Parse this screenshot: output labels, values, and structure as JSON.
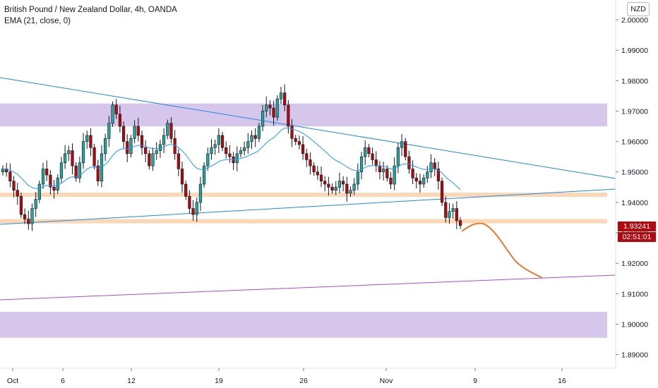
{
  "header": {
    "symbol_title": "British Pound / New Zealand Dollar, 4h, OANDA",
    "indicator": "EMA (21, close, 0)",
    "currency": "NZD"
  },
  "price_label": {
    "price": "1.93241",
    "countdown": "02:51:01",
    "color": "#b2090f"
  },
  "colors": {
    "up": "#26a69a",
    "down": "#b2090f",
    "candle_outline": "#131722",
    "ema": "#2196f3",
    "trendline": "#1e88e5",
    "support_zone": "#fcd7b5",
    "supply_zone": "#d6c6ec",
    "projection": "#ef6c1f",
    "lower_trend": "#a64dd6"
  },
  "chart_data": {
    "type": "candlestick",
    "y_axis": {
      "range": [
        1.8855,
        2.0065
      ],
      "ticks": [
        "1.89000",
        "1.90000",
        "1.91000",
        "1.92000",
        "1.93000",
        "1.94000",
        "1.95000",
        "1.96000",
        "1.97000",
        "1.98000",
        "1.99000",
        "2.00000"
      ]
    },
    "x_axis": {
      "ticks": [
        {
          "label": "Oct",
          "date": "Oct 1"
        },
        {
          "label": "6",
          "date": "Oct 6"
        },
        {
          "label": "12",
          "date": "Oct 12"
        },
        {
          "label": "19",
          "date": "Oct 19"
        },
        {
          "label": "26",
          "date": "Oct 26"
        },
        {
          "label": "Nov",
          "date": "Nov 1"
        },
        {
          "label": "9",
          "date": "Nov 9"
        },
        {
          "label": "16",
          "date": "Nov 16"
        }
      ]
    },
    "zones": [
      {
        "kind": "supply",
        "from": 1.965,
        "to": 1.9725
      },
      {
        "kind": "support",
        "from": 1.9422,
        "to": 1.9432
      },
      {
        "kind": "support",
        "from": 1.9335,
        "to": 1.9345
      },
      {
        "kind": "supply",
        "from": 1.8955,
        "to": 1.904
      }
    ],
    "close_series": [
      1.951,
      1.95,
      1.947,
      1.944,
      1.942,
      1.936,
      1.9345,
      1.933,
      1.938,
      1.941,
      1.946,
      1.951,
      1.949,
      1.945,
      1.944,
      1.948,
      1.953,
      1.956,
      1.957,
      1.952,
      1.948,
      1.953,
      1.96,
      1.962,
      1.958,
      1.952,
      1.947,
      1.956,
      1.961,
      1.966,
      1.972,
      1.969,
      1.965,
      1.96,
      1.956,
      1.961,
      1.965,
      1.962,
      1.958,
      1.956,
      1.952,
      1.956,
      1.957,
      1.959,
      1.962,
      1.966,
      1.961,
      1.956,
      1.951,
      1.946,
      1.942,
      1.938,
      1.936,
      1.94,
      1.946,
      1.952,
      1.956,
      1.958,
      1.959,
      1.962,
      1.958,
      1.956,
      1.955,
      1.953,
      1.956,
      1.957,
      1.958,
      1.96,
      1.962,
      1.961,
      1.965,
      1.97,
      1.972,
      1.971,
      1.968,
      1.974,
      1.976,
      1.972,
      1.965,
      1.961,
      1.96,
      1.959,
      1.956,
      1.954,
      1.952,
      1.95,
      1.949,
      1.947,
      1.946,
      1.945,
      1.944,
      1.945,
      1.947,
      1.946,
      1.943,
      1.944,
      1.946,
      1.95,
      1.955,
      1.958,
      1.956,
      1.954,
      1.952,
      1.95,
      1.951,
      1.948,
      1.946,
      1.952,
      1.958,
      1.96,
      1.955,
      1.951,
      1.948,
      1.947,
      1.946,
      1.948,
      1.95,
      1.953,
      1.951,
      1.947,
      1.94,
      1.935,
      1.937,
      1.938,
      1.934,
      1.9324
    ]
  },
  "annotations": {
    "upper_trendline": "descending",
    "lower_trendline": "ascending",
    "purple_trendline": "ascending",
    "projection": "orange path"
  }
}
